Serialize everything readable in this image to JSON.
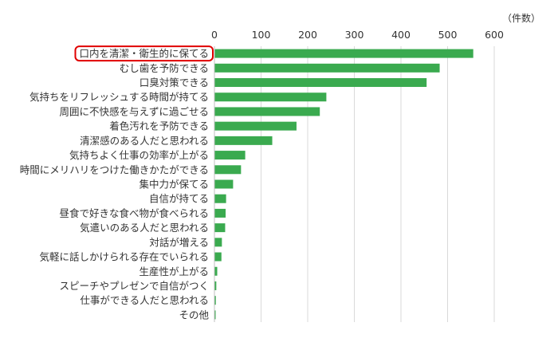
{
  "chart_data": {
    "type": "bar",
    "orientation": "horizontal",
    "unit_label": "（件数）",
    "categories": [
      "口内を清潔・衛生的に保てる",
      "むし歯を予防できる",
      "口臭対策できる",
      "気持ちをリフレッシュする時間が持てる",
      "周囲に不快感を与えずに過ごせる",
      "着色汚れを予防できる",
      "清潔感のある人だと思われる",
      "気持ちよく仕事の効率が上がる",
      "時間にメリハリをつけた働きかたができる",
      "集中力が保てる",
      "自信が持てる",
      "昼食で好きな食べ物が食べられる",
      "気遣いのある人だと思われる",
      "対話が増える",
      "気軽に話しかけられる存在でいられる",
      "生産性が上がる",
      "スピーチやプレゼンで自信がつく",
      "仕事ができる人だと思われる",
      "その他"
    ],
    "values": [
      555,
      483,
      455,
      240,
      226,
      176,
      124,
      66,
      57,
      40,
      25,
      24,
      23,
      16,
      15,
      6,
      4,
      3,
      2
    ],
    "xlim": [
      0,
      600
    ],
    "ticks": [
      0,
      100,
      200,
      300,
      400,
      500,
      600
    ],
    "highlighted_category": "口内を清潔・衛生的に保てる",
    "grid": true,
    "colors": {
      "bar": "#3aaa4f",
      "grid": "#d9d9d9",
      "axis": "#bfbfbf",
      "highlight_box": "#e00000"
    }
  }
}
